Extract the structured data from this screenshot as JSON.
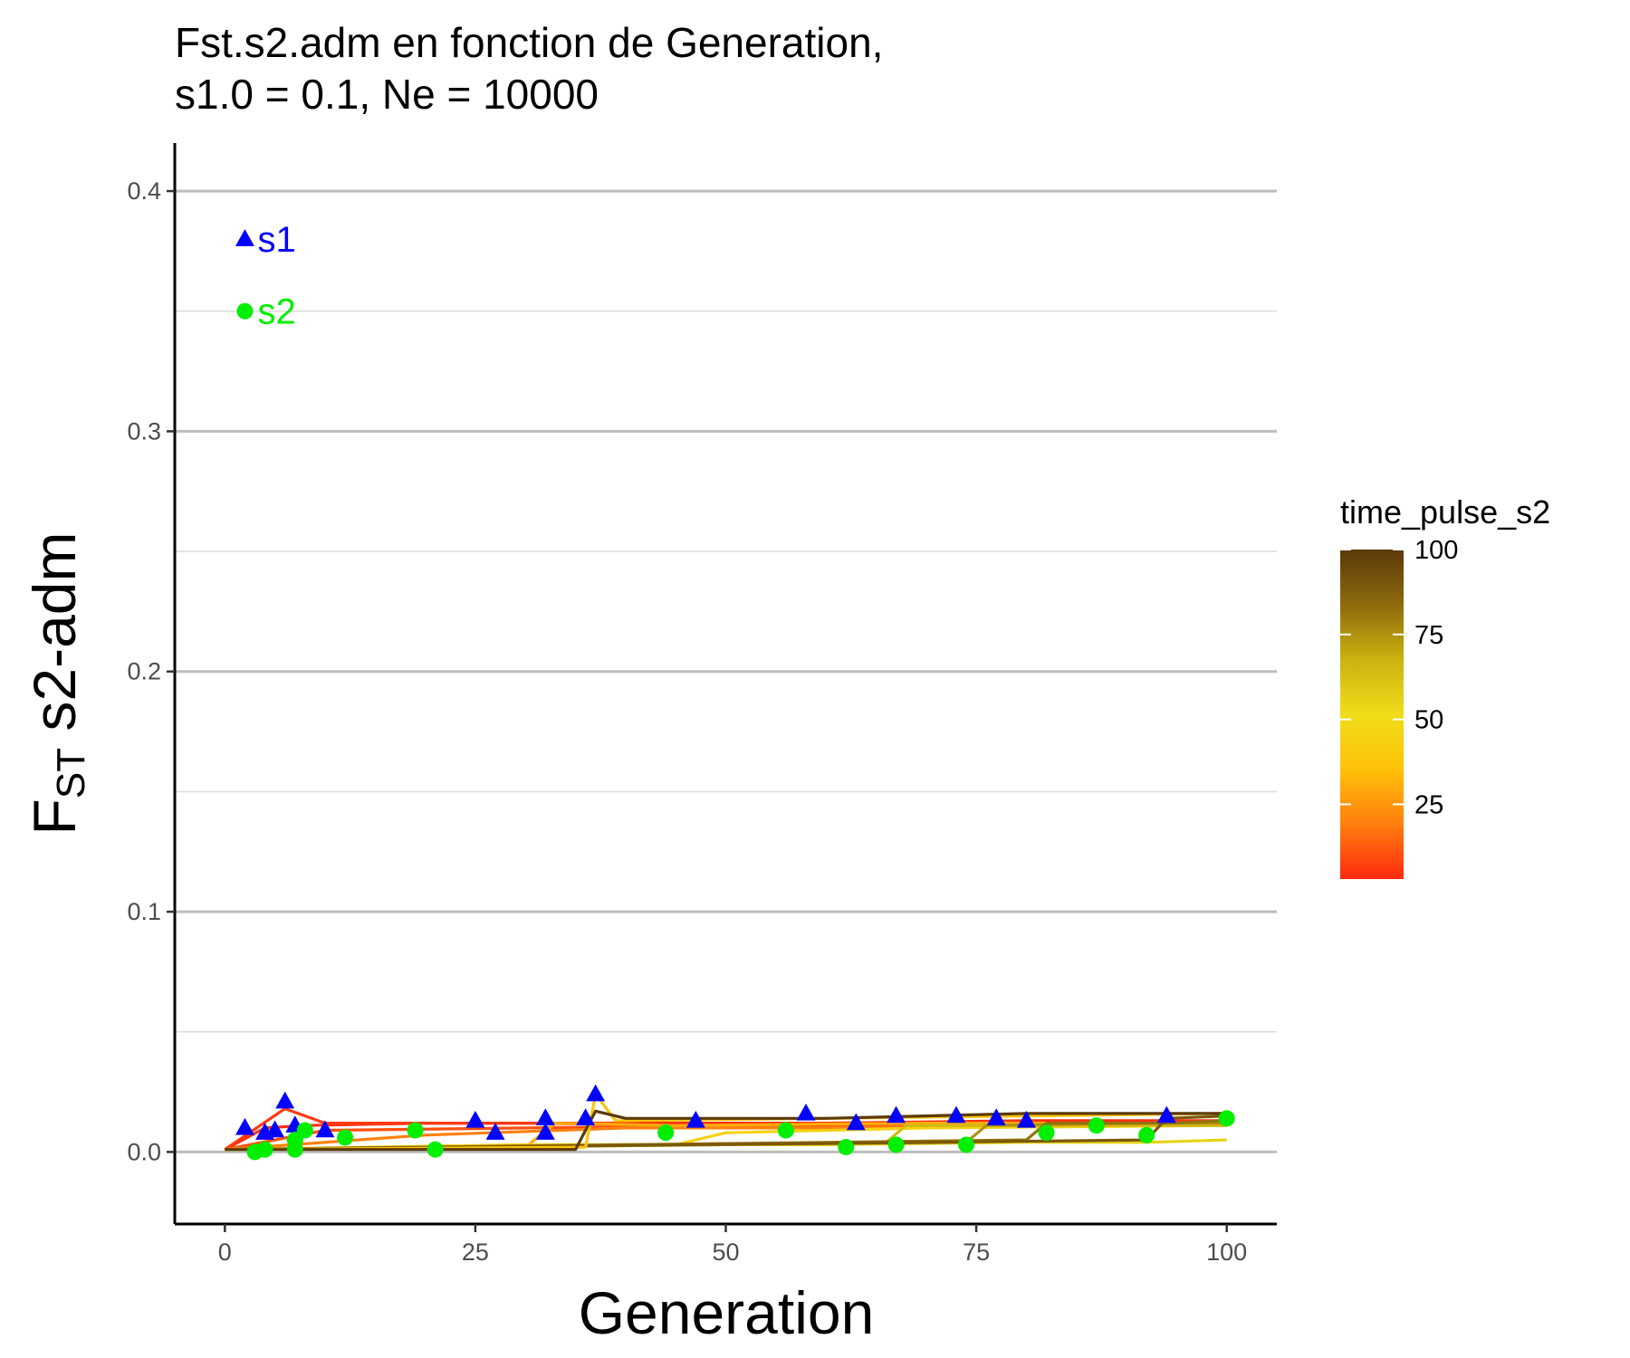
{
  "chart_data": {
    "type": "line",
    "title_line1": "Fst.s2.adm en fonction de Generation,",
    "title_line2": "s1.0 = 0.1, Ne = 10000",
    "xlabel": "Generation",
    "ylabel_main": "F",
    "ylabel_sub": "ST",
    "ylabel_rest": " s2-adm",
    "xlim": [
      -5,
      105
    ],
    "ylim": [
      -0.03,
      0.42
    ],
    "x_ticks": [
      0,
      25,
      50,
      75,
      100
    ],
    "x_tick_labels": [
      "0",
      "25",
      "50",
      "75",
      "100"
    ],
    "y_ticks": [
      0.0,
      0.1,
      0.2,
      0.3,
      0.4
    ],
    "y_tick_labels": [
      "0.0",
      "0.1",
      "0.2",
      "0.3",
      "0.4"
    ],
    "grid": "horizontal",
    "legend": {
      "title": "time_pulse_s2",
      "position": "right",
      "type": "colorbar",
      "range": [
        3,
        100
      ],
      "ticks": [
        25,
        50,
        75,
        100
      ],
      "tick_labels": [
        "25",
        "50",
        "75",
        "100"
      ],
      "colors": [
        "#ff2a10",
        "#ff7e0e",
        "#ffc107",
        "#efdd1a",
        "#cbb20f",
        "#8d6a0c",
        "#5b3a0a"
      ]
    },
    "series_lines": [
      {
        "time_pulse_s2": 4,
        "values": [
          [
            0,
            0.001
          ],
          [
            4,
            0.01
          ],
          [
            8,
            0.011
          ],
          [
            20,
            0.012
          ],
          [
            40,
            0.012
          ],
          [
            60,
            0.012
          ],
          [
            80,
            0.013
          ],
          [
            100,
            0.013
          ]
        ]
      },
      {
        "time_pulse_s2": 6,
        "values": [
          [
            0,
            0.001
          ],
          [
            6,
            0.018
          ],
          [
            10,
            0.012
          ],
          [
            30,
            0.012
          ],
          [
            50,
            0.011
          ],
          [
            70,
            0.012
          ],
          [
            100,
            0.012
          ]
        ]
      },
      {
        "time_pulse_s2": 10,
        "values": [
          [
            0,
            0.001
          ],
          [
            10,
            0.009
          ],
          [
            30,
            0.01
          ],
          [
            50,
            0.011
          ],
          [
            75,
            0.011
          ],
          [
            100,
            0.012
          ]
        ]
      },
      {
        "time_pulse_s2": 20,
        "values": [
          [
            0,
            0.001
          ],
          [
            20,
            0.007
          ],
          [
            40,
            0.01
          ],
          [
            60,
            0.01
          ],
          [
            80,
            0.011
          ],
          [
            100,
            0.011
          ]
        ]
      },
      {
        "time_pulse_s2": 30,
        "values": [
          [
            0,
            0.001
          ],
          [
            30,
            0.002
          ],
          [
            33,
            0.012
          ],
          [
            45,
            0.011
          ],
          [
            70,
            0.012
          ],
          [
            100,
            0.012
          ]
        ]
      },
      {
        "time_pulse_s2": 45,
        "values": [
          [
            0,
            0.001
          ],
          [
            30,
            0.003
          ],
          [
            45,
            0.003
          ],
          [
            50,
            0.008
          ],
          [
            70,
            0.01
          ],
          [
            100,
            0.011
          ]
        ]
      },
      {
        "time_pulse_s2": 55,
        "values": [
          [
            0,
            0.001
          ],
          [
            50,
            0.003
          ],
          [
            60,
            0.003
          ],
          [
            80,
            0.004
          ],
          [
            92,
            0.004
          ],
          [
            100,
            0.005
          ]
        ]
      },
      {
        "time_pulse_s2": 65,
        "values": [
          [
            0,
            0.001
          ],
          [
            40,
            0.003
          ],
          [
            66,
            0.004
          ],
          [
            68,
            0.011
          ],
          [
            85,
            0.011
          ],
          [
            100,
            0.011
          ]
        ]
      },
      {
        "time_pulse_s2": 75,
        "values": [
          [
            0,
            0.001
          ],
          [
            50,
            0.003
          ],
          [
            74,
            0.004
          ],
          [
            76,
            0.011
          ],
          [
            90,
            0.012
          ],
          [
            100,
            0.012
          ]
        ]
      },
      {
        "time_pulse_s2": 82,
        "values": [
          [
            0,
            0.001
          ],
          [
            60,
            0.004
          ],
          [
            80,
            0.005
          ],
          [
            82,
            0.012
          ],
          [
            94,
            0.012
          ],
          [
            100,
            0.013
          ]
        ]
      },
      {
        "time_pulse_s2": 90,
        "values": [
          [
            0,
            0.001
          ],
          [
            70,
            0.004
          ],
          [
            92,
            0.005
          ],
          [
            94,
            0.014
          ],
          [
            100,
            0.015
          ]
        ]
      },
      {
        "time_pulse_s2": 37,
        "values": [
          [
            0,
            0.001
          ],
          [
            36,
            0.002
          ],
          [
            37,
            0.024
          ],
          [
            39,
            0.013
          ],
          [
            60,
            0.014
          ],
          [
            80,
            0.015
          ],
          [
            100,
            0.016
          ]
        ]
      },
      {
        "time_pulse_s2": 100,
        "values": [
          [
            0,
            0.001
          ],
          [
            20,
            0.001
          ],
          [
            35,
            0.001
          ],
          [
            37,
            0.017
          ],
          [
            40,
            0.014
          ],
          [
            60,
            0.014
          ],
          [
            80,
            0.016
          ],
          [
            100,
            0.016
          ]
        ]
      }
    ],
    "markers_s1": [
      [
        2,
        0.01
      ],
      [
        4,
        0.008
      ],
      [
        5,
        0.009
      ],
      [
        6,
        0.021
      ],
      [
        7,
        0.011
      ],
      [
        10,
        0.009
      ],
      [
        25,
        0.013
      ],
      [
        27,
        0.008
      ],
      [
        32,
        0.014
      ],
      [
        32,
        0.008
      ],
      [
        36,
        0.014
      ],
      [
        37,
        0.024
      ],
      [
        47,
        0.013
      ],
      [
        58,
        0.016
      ],
      [
        63,
        0.012
      ],
      [
        67,
        0.015
      ],
      [
        73,
        0.015
      ],
      [
        77,
        0.014
      ],
      [
        80,
        0.013
      ],
      [
        94,
        0.015
      ]
    ],
    "markers_s2": [
      [
        3,
        0.0
      ],
      [
        4,
        0.001
      ],
      [
        7,
        0.001
      ],
      [
        7,
        0.005
      ],
      [
        8,
        0.009
      ],
      [
        12,
        0.006
      ],
      [
        19,
        0.009
      ],
      [
        21,
        0.001
      ],
      [
        44,
        0.008
      ],
      [
        56,
        0.009
      ],
      [
        62,
        0.002
      ],
      [
        67,
        0.003
      ],
      [
        74,
        0.003
      ],
      [
        82,
        0.008
      ],
      [
        87,
        0.011
      ],
      [
        92,
        0.007
      ],
      [
        100,
        0.014
      ]
    ],
    "annotations": [
      {
        "label": "s1",
        "x": 2,
        "y": 0.38,
        "shape": "triangle",
        "color": "#0000ff"
      },
      {
        "label": "s2",
        "x": 2,
        "y": 0.35,
        "shape": "circle",
        "color": "#00ee00"
      }
    ]
  }
}
